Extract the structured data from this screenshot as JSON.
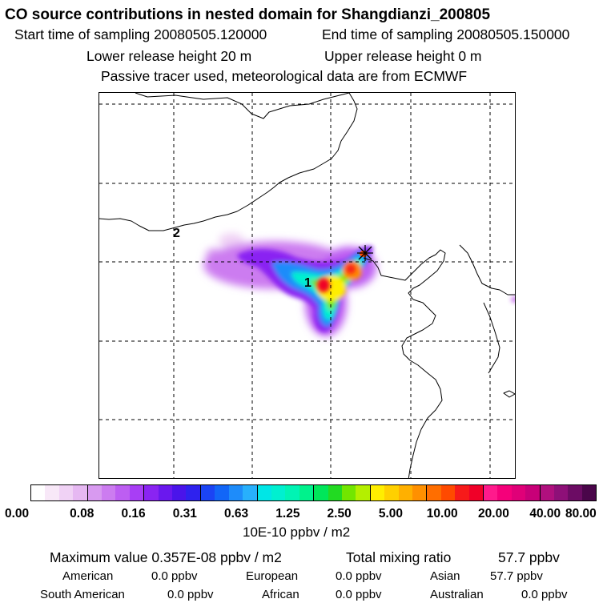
{
  "header": {
    "title": "CO  source contributions in nested domain for Shangdianzi_200805",
    "start_label": "Start time of sampling 20080505.120000",
    "end_label": "End time of sampling 20080505.150000",
    "lower_label": "Lower release height   20 m",
    "upper_label": "Upper release height    0 m",
    "tracer_note": "Passive tracer used, meteorological data are from ECMWF"
  },
  "colorbar": {
    "tick_labels": [
      "0.00",
      "0.08",
      "0.16",
      "0.31",
      "0.63",
      "1.25",
      "2.50",
      "5.00",
      "10.00",
      "20.00",
      "40.00",
      "80.00"
    ],
    "unit_label": "10E-10 ppbv / m2",
    "colors": [
      "#ffffff",
      "#f8e8f8",
      "#f0d2f5",
      "#e6b8f2",
      "#d89af0",
      "#cc7cf0",
      "#bd5ef2",
      "#a83ef5",
      "#8a24f2",
      "#6a18ee",
      "#4a14ea",
      "#2e22ee",
      "#1b44f4",
      "#1266f7",
      "#1e8cfa",
      "#28b0fc",
      "#00e6e6",
      "#00f0d0",
      "#00f4b4",
      "#00f28c",
      "#00e65a",
      "#22da22",
      "#72e600",
      "#b4ef00",
      "#ffee00",
      "#ffd000",
      "#ffb000",
      "#ff9000",
      "#ff6e00",
      "#ff4a00",
      "#f71a1a",
      "#f00028",
      "#ff1a8c",
      "#f5007a",
      "#e00078",
      "#c80078",
      "#b0107e",
      "#8e1078",
      "#6c0c64",
      "#4a064a"
    ]
  },
  "footer": {
    "max_label": "Maximum value  0.357E-08 ppbv / m2",
    "total_label": "Total mixing ratio",
    "total_value": "57.7 ppbv",
    "sources": [
      {
        "name": "American",
        "value": "0.0 ppbv"
      },
      {
        "name": "European",
        "value": "0.0 ppbv"
      },
      {
        "name": "Asian",
        "value": "57.7 ppbv"
      },
      {
        "name": "South American",
        "value": "0.0 ppbv"
      },
      {
        "name": "African",
        "value": "0.0 ppbv"
      },
      {
        "name": "Australian",
        "value": "0.0 ppbv"
      }
    ]
  },
  "map": {
    "labels": {
      "point1": "1",
      "point2": "2"
    }
  },
  "chart_data": {
    "type": "heatmap",
    "title": "CO  source contributions in nested domain for Shangdianzi_200805",
    "colorbar_levels": [
      0.0,
      0.08,
      0.16,
      0.31,
      0.63,
      1.25,
      2.5,
      5.0,
      10.0,
      20.0,
      40.0,
      80.0
    ],
    "unit": "10E-10 ppbv / m2",
    "maximum_value": "0.357E-08 ppbv / m2",
    "grid": true
  }
}
